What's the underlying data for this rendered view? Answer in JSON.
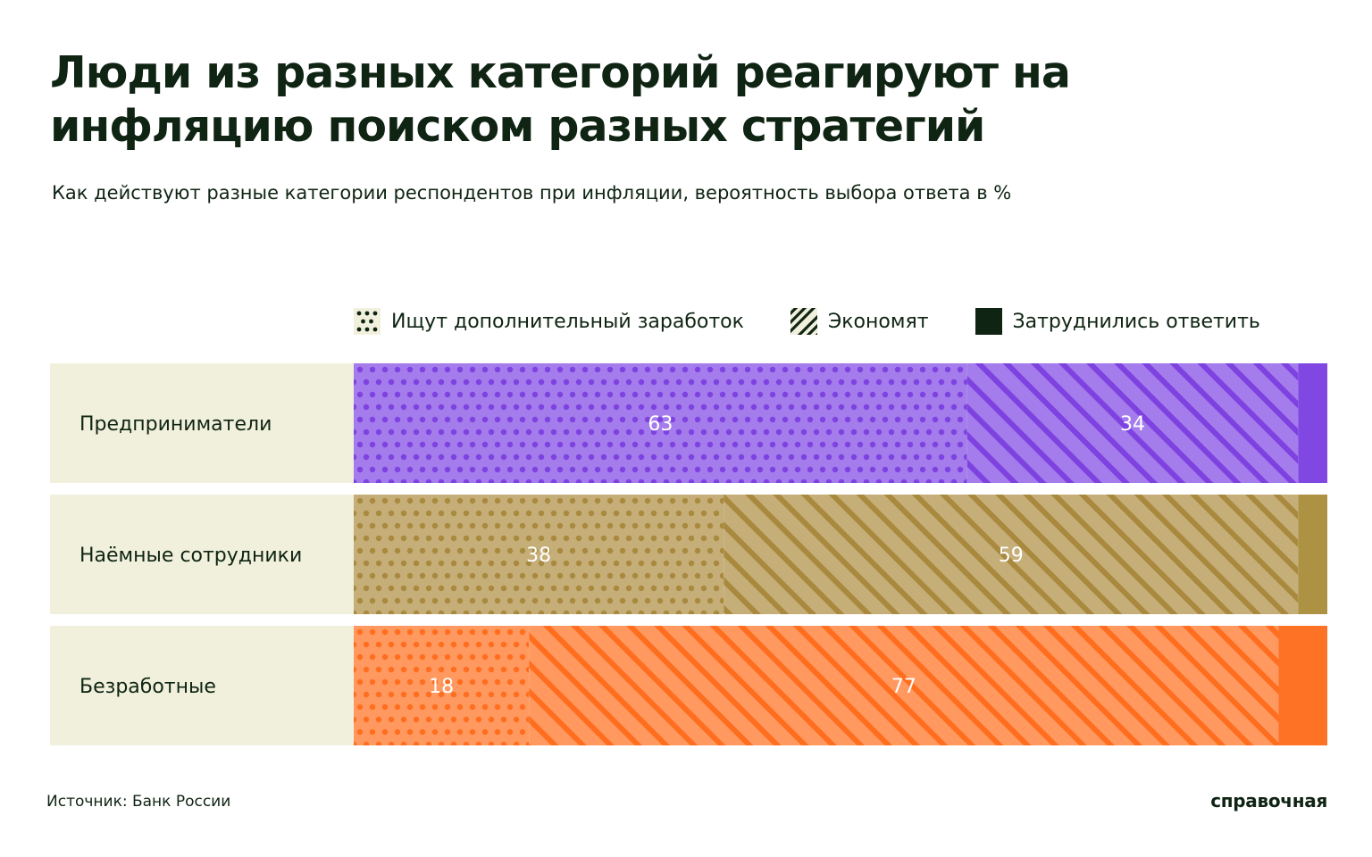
{
  "title": "Люди из разных категорий реагируют на инфляцию поиском разных стратегий",
  "subtitle": "Как действуют разные категории респондентов при инфляции, вероятность выбора ответа в %",
  "source": "Источник: Банк России",
  "brand": "справочная",
  "colors": {
    "text": "#0f2413",
    "label_background": "#f1f0dd"
  },
  "chart_data": {
    "type": "bar",
    "orientation": "horizontal",
    "stacked": true,
    "legend_position": "top",
    "grid": false,
    "xlim": [
      0,
      100
    ],
    "categories": [
      "Предприниматели",
      "Наёмные сотрудники",
      "Безработные"
    ],
    "series": [
      {
        "name": "Ищут дополнительный заработок",
        "pattern": "dots",
        "values": [
          63,
          38,
          18
        ],
        "labels": [
          "63",
          "38",
          "18"
        ]
      },
      {
        "name": "Экономят",
        "pattern": "stripes",
        "values": [
          34,
          59,
          77
        ],
        "labels": [
          "34",
          "59",
          "77"
        ]
      },
      {
        "name": "Затруднились ответить",
        "pattern": "solid",
        "values": [
          3,
          3,
          5
        ]
      }
    ],
    "category_colors": [
      {
        "light": "#a47cec",
        "base": "#8147e2",
        "pattern": "#7d42df"
      },
      {
        "light": "#c6ae79",
        "base": "#ae9244",
        "pattern": "#a8893e"
      },
      {
        "light": "#ff9960",
        "base": "#fe7226",
        "pattern": "#ff6e1e"
      }
    ]
  }
}
